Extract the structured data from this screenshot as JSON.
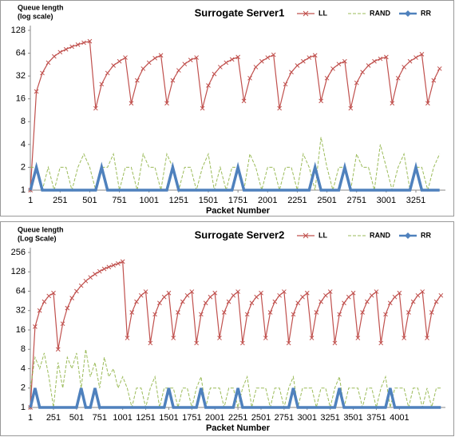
{
  "chart_data": [
    {
      "type": "line",
      "title": "Surrogate Server1",
      "y_label": [
        "Queue length",
        "(log scale)"
      ],
      "x_label": "Packet Number",
      "log_y": true,
      "legend": "top-right",
      "xlim": [
        0,
        3500
      ],
      "xticks": [
        1,
        251,
        501,
        751,
        1001,
        1251,
        1501,
        1751,
        2001,
        2251,
        2501,
        2751,
        3001,
        3251
      ],
      "ylim": [
        1,
        128
      ],
      "yticks": [
        1,
        2,
        4,
        8,
        16,
        32,
        64,
        128
      ],
      "x": [
        1,
        51,
        101,
        151,
        201,
        251,
        301,
        351,
        401,
        451,
        501,
        551,
        601,
        651,
        701,
        751,
        801,
        851,
        901,
        951,
        1001,
        1051,
        1101,
        1151,
        1201,
        1251,
        1301,
        1351,
        1401,
        1451,
        1501,
        1551,
        1601,
        1651,
        1701,
        1751,
        1801,
        1851,
        1901,
        1951,
        2001,
        2051,
        2101,
        2151,
        2201,
        2251,
        2301,
        2351,
        2401,
        2451,
        2501,
        2551,
        2601,
        2651,
        2701,
        2751,
        2801,
        2851,
        2901,
        2951,
        3001,
        3051,
        3101,
        3151,
        3201,
        3251,
        3301,
        3351,
        3401,
        3451
      ],
      "series": [
        {
          "name": "LL",
          "color": "#c0504d",
          "values": [
            1,
            20,
            35,
            48,
            58,
            66,
            72,
            78,
            83,
            88,
            92,
            12,
            25,
            35,
            44,
            50,
            56,
            14,
            28,
            40,
            48,
            55,
            60,
            14,
            28,
            38,
            46,
            52,
            56,
            12,
            24,
            34,
            42,
            48,
            53,
            57,
            15,
            30,
            42,
            50,
            56,
            61,
            12,
            25,
            36,
            44,
            50,
            56,
            60,
            15,
            30,
            40,
            46,
            50,
            12,
            26,
            36,
            44,
            50,
            54,
            57,
            14,
            30,
            42,
            50,
            56,
            62,
            14,
            28,
            40
          ]
        },
        {
          "name": "RAND",
          "color": "#9bbb59",
          "values": [
            2,
            2,
            1,
            2,
            1,
            2,
            2,
            1,
            2,
            3,
            2,
            1,
            2,
            2,
            3,
            1,
            2,
            2,
            1,
            3,
            2,
            2,
            1,
            3,
            2,
            1,
            2,
            2,
            1,
            2,
            3,
            1,
            2,
            1,
            2,
            2,
            1,
            3,
            2,
            1,
            2,
            2,
            1,
            2,
            2,
            1,
            3,
            2,
            1,
            5,
            2,
            1,
            2,
            2,
            1,
            3,
            2,
            2,
            1,
            4,
            2,
            1,
            2,
            3,
            1,
            2,
            2,
            1,
            2,
            3
          ]
        },
        {
          "name": "RR",
          "color": "#4f81bd",
          "values": [
            1,
            2,
            1,
            1,
            1,
            1,
            1,
            1,
            1,
            1,
            1,
            1,
            2,
            1,
            1,
            1,
            1,
            1,
            1,
            1,
            1,
            1,
            1,
            1,
            2,
            1,
            1,
            1,
            1,
            1,
            1,
            1,
            1,
            1,
            1,
            2,
            1,
            1,
            1,
            1,
            1,
            1,
            1,
            1,
            1,
            1,
            1,
            1,
            2,
            1,
            1,
            1,
            1,
            2,
            1,
            1,
            1,
            1,
            1,
            1,
            1,
            1,
            1,
            1,
            1,
            2,
            1,
            1,
            1,
            1
          ]
        }
      ]
    },
    {
      "type": "line",
      "title": "Surrogate Server2",
      "y_label": [
        "Queue length",
        "(Log Scale)"
      ],
      "x_label": "Packet Number",
      "log_y": true,
      "legend": "top-right",
      "xlim": [
        0,
        4500
      ],
      "xticks": [
        1,
        251,
        501,
        751,
        1001,
        1251,
        1501,
        1751,
        2001,
        2251,
        2501,
        2751,
        3001,
        3251,
        3501,
        3751,
        4001
      ],
      "ylim": [
        1,
        256
      ],
      "yticks": [
        1,
        2,
        4,
        8,
        16,
        32,
        64,
        128,
        256
      ],
      "x": [
        1,
        51,
        101,
        151,
        201,
        251,
        301,
        351,
        401,
        451,
        501,
        551,
        601,
        651,
        701,
        751,
        801,
        851,
        901,
        951,
        1001,
        1051,
        1101,
        1151,
        1201,
        1251,
        1301,
        1351,
        1401,
        1451,
        1501,
        1551,
        1601,
        1651,
        1701,
        1751,
        1801,
        1851,
        1901,
        1951,
        2001,
        2051,
        2101,
        2151,
        2201,
        2251,
        2301,
        2351,
        2401,
        2451,
        2501,
        2551,
        2601,
        2651,
        2701,
        2751,
        2801,
        2851,
        2901,
        2951,
        3001,
        3051,
        3101,
        3151,
        3201,
        3251,
        3301,
        3351,
        3401,
        3451,
        3501,
        3551,
        3601,
        3651,
        3701,
        3751,
        3801,
        3851,
        3901,
        3951,
        4001,
        4051,
        4101,
        4151,
        4201,
        4251,
        4301,
        4351,
        4401,
        4451
      ],
      "series": [
        {
          "name": "LL",
          "color": "#c0504d",
          "values": [
            1,
            18,
            32,
            44,
            54,
            60,
            8,
            20,
            35,
            50,
            64,
            78,
            92,
            105,
            118,
            130,
            142,
            152,
            162,
            172,
            185,
            12,
            30,
            44,
            55,
            63,
            10,
            28,
            42,
            52,
            60,
            12,
            30,
            44,
            55,
            63,
            10,
            28,
            42,
            52,
            60,
            12,
            30,
            44,
            55,
            63,
            10,
            28,
            42,
            52,
            60,
            12,
            30,
            44,
            55,
            63,
            10,
            28,
            42,
            52,
            60,
            12,
            30,
            44,
            55,
            63,
            10,
            28,
            42,
            52,
            60,
            12,
            30,
            44,
            55,
            63,
            10,
            28,
            42,
            52,
            60,
            12,
            30,
            44,
            55,
            63,
            12,
            30,
            44,
            55
          ]
        },
        {
          "name": "RAND",
          "color": "#9bbb59",
          "values": [
            2,
            6,
            4,
            7,
            3,
            1,
            5,
            2,
            6,
            4,
            7,
            2,
            8,
            3,
            5,
            2,
            6,
            3,
            4,
            2,
            3,
            2,
            1,
            2,
            2,
            1,
            2,
            3,
            1,
            2,
            2,
            2,
            1,
            2,
            2,
            1,
            2,
            3,
            1,
            2,
            2,
            2,
            1,
            2,
            2,
            1,
            2,
            3,
            1,
            2,
            2,
            2,
            1,
            2,
            2,
            1,
            2,
            3,
            1,
            2,
            2,
            2,
            1,
            2,
            2,
            1,
            2,
            3,
            1,
            2,
            2,
            2,
            1,
            2,
            2,
            1,
            2,
            3,
            1,
            2,
            2,
            2,
            1,
            2,
            2,
            1,
            2,
            1,
            2,
            2
          ]
        },
        {
          "name": "RR",
          "color": "#4f81bd",
          "values": [
            1,
            2,
            1,
            1,
            1,
            1,
            1,
            1,
            1,
            1,
            1,
            2,
            1,
            1,
            2,
            1,
            1,
            1,
            1,
            1,
            1,
            1,
            1,
            1,
            1,
            1,
            1,
            1,
            1,
            1,
            2,
            1,
            1,
            1,
            1,
            1,
            1,
            2,
            1,
            1,
            1,
            1,
            1,
            1,
            1,
            2,
            1,
            1,
            1,
            1,
            1,
            1,
            1,
            1,
            1,
            1,
            1,
            2,
            1,
            1,
            1,
            1,
            1,
            1,
            1,
            1,
            1,
            2,
            1,
            1,
            1,
            1,
            1,
            1,
            1,
            1,
            1,
            1,
            2,
            1,
            1,
            1,
            1,
            1,
            1,
            1,
            1,
            1,
            1,
            1
          ]
        }
      ]
    }
  ]
}
